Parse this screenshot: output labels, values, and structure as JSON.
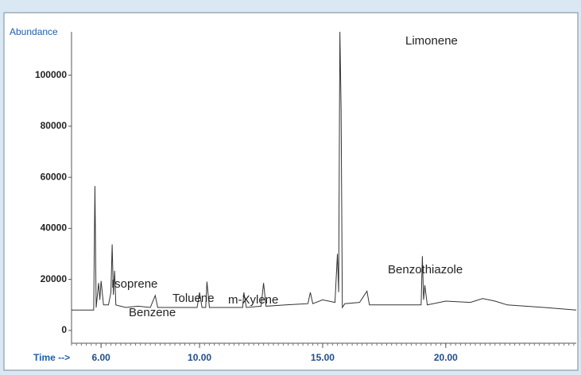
{
  "chart_data": {
    "type": "line",
    "y_label": "Abundance",
    "x_label": "Time -->",
    "color": "#333333",
    "xlim": [
      4.8,
      25.3
    ],
    "ylim": [
      -5000,
      117000
    ],
    "xticks": [
      {
        "value": 6,
        "label": "6.00"
      },
      {
        "value": 10,
        "label": "10.00"
      },
      {
        "value": 15,
        "label": "15.00"
      },
      {
        "value": 20,
        "label": "20.00"
      }
    ],
    "yticks": [
      0,
      20000,
      40000,
      60000,
      80000,
      100000
    ],
    "x": [
      4.8,
      5.7,
      5.75,
      5.8,
      5.9,
      5.95,
      6.0,
      6.1,
      6.3,
      6.4,
      6.45,
      6.5,
      6.55,
      6.6,
      7.0,
      7.5,
      8.0,
      8.2,
      8.3,
      9.0,
      9.9,
      10.0,
      10.1,
      10.25,
      10.3,
      10.4,
      11.0,
      11.75,
      11.8,
      11.9,
      12.5,
      12.6,
      12.7,
      13.5,
      14.4,
      14.5,
      14.6,
      15.0,
      15.5,
      15.6,
      15.65,
      15.7,
      15.75,
      15.8,
      15.9,
      16.5,
      16.8,
      16.9,
      18.0,
      19.0,
      19.05,
      19.1,
      19.15,
      19.25,
      20.0,
      21.0,
      21.5,
      22.0,
      22.5,
      24.0,
      25.3
    ],
    "values": [
      8000,
      8000,
      56600,
      9000,
      18600,
      12000,
      19400,
      10000,
      10000,
      14900,
      33700,
      14000,
      23400,
      10000,
      9000,
      9500,
      9000,
      13700,
      9000,
      9000,
      9000,
      14900,
      9000,
      9000,
      19100,
      9000,
      9000,
      9000,
      14900,
      9000,
      9500,
      18600,
      9500,
      10000,
      10500,
      14900,
      10500,
      12000,
      11000,
      30000,
      15000,
      117000,
      86300,
      9000,
      10500,
      11000,
      15400,
      10000,
      10000,
      10000,
      29100,
      12000,
      17700,
      10000,
      11500,
      11000,
      12500,
      11500,
      10000,
      9000,
      8000
    ],
    "annotations": [
      "Limonene",
      "Isoprene",
      "Benzene",
      "Toluene",
      "m-Xylene",
      "Benzothiazole"
    ]
  }
}
